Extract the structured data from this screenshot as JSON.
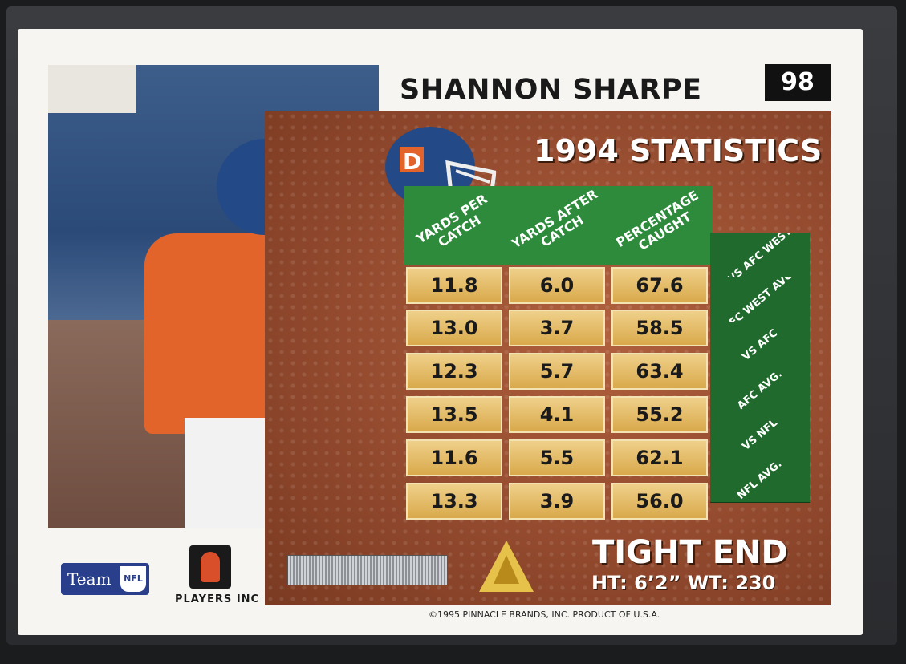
{
  "player": {
    "name": "SHANNON SHARPE",
    "card_number": "98",
    "position": "TIGHT END",
    "ht_wt": "HT: 6’2”  WT: 230"
  },
  "stats": {
    "title": "1994 STATISTICS",
    "columns": [
      "YARDS PER CATCH",
      "YARDS AFTER CATCH",
      "PERCENTAGE CAUGHT"
    ],
    "rows": [
      {
        "label": "VS AFC WEST",
        "values": [
          "11.8",
          "6.0",
          "67.6"
        ]
      },
      {
        "label": "AFC WEST AVG.",
        "values": [
          "13.0",
          "3.7",
          "58.5"
        ]
      },
      {
        "label": "VS AFC",
        "values": [
          "12.3",
          "5.7",
          "63.4"
        ]
      },
      {
        "label": "AFC AVG.",
        "values": [
          "13.5",
          "4.1",
          "55.2"
        ]
      },
      {
        "label": "VS NFL",
        "values": [
          "11.6",
          "5.5",
          "62.1"
        ]
      },
      {
        "label": "NFL AVG.",
        "values": [
          "13.3",
          "3.9",
          "56.0"
        ]
      }
    ]
  },
  "logos": {
    "team": "Team",
    "team_badge": "NFL",
    "players": "PLAYERS INC"
  },
  "footer": {
    "copyright": "©1995 PINNACLE BRANDS, INC. PRODUCT OF U.S.A."
  },
  "colors": {
    "stat_header_green": "#2e8b3c",
    "stat_side_green": "#1f6a2c",
    "football_brown": "#934a2e",
    "broncos_orange": "#e2642a",
    "broncos_blue": "#234a86"
  }
}
